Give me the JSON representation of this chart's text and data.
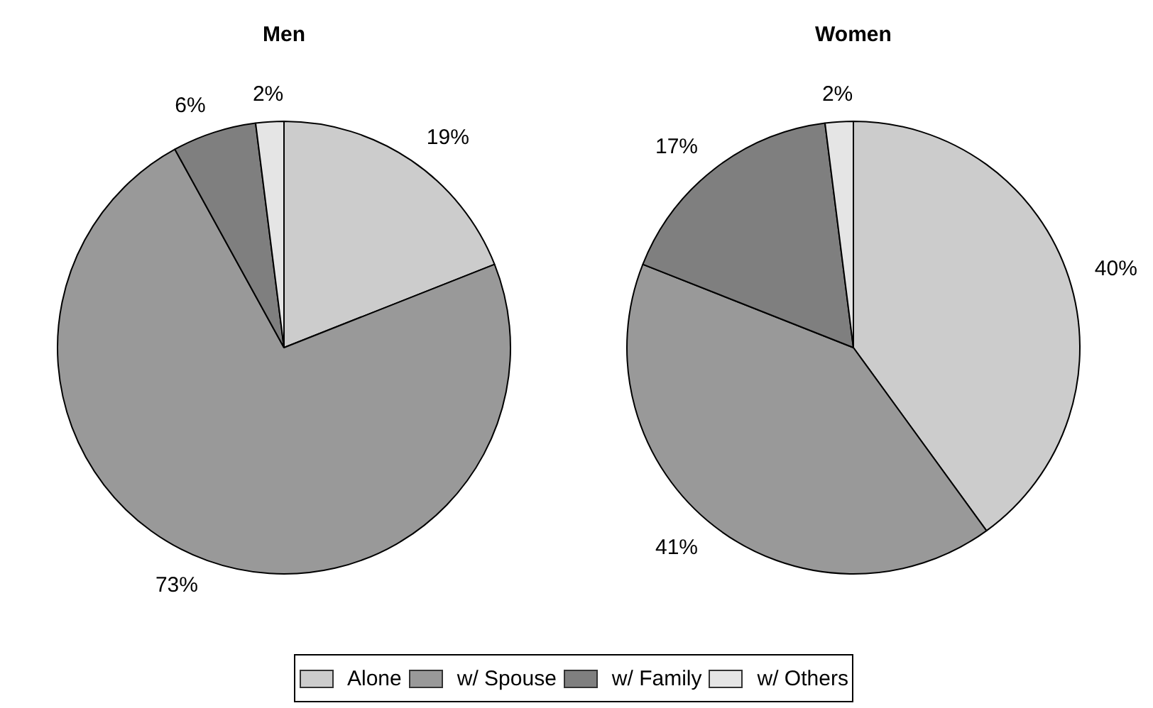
{
  "chart_data": [
    {
      "type": "pie",
      "title": "Men",
      "categories": [
        "Alone",
        "w/ Spouse",
        "w/ Family",
        "w/ Others"
      ],
      "values": [
        19,
        73,
        6,
        2
      ],
      "colors": [
        "#cccccc",
        "#999999",
        "#7f7f7f",
        "#e5e5e5"
      ],
      "value_labels": [
        "19%",
        "73%",
        "6%",
        "2%"
      ],
      "legend": "bottom"
    },
    {
      "type": "pie",
      "title": "Women",
      "categories": [
        null,
        null,
        null,
        null
      ],
      "values": [
        40,
        41,
        17,
        2
      ],
      "colors": [
        "#cccccc",
        "#999999",
        "#7f7f7f",
        "#e5e5e5"
      ],
      "value_labels": [
        "40%",
        "41%",
        "17%",
        "2%"
      ]
    }
  ]
}
